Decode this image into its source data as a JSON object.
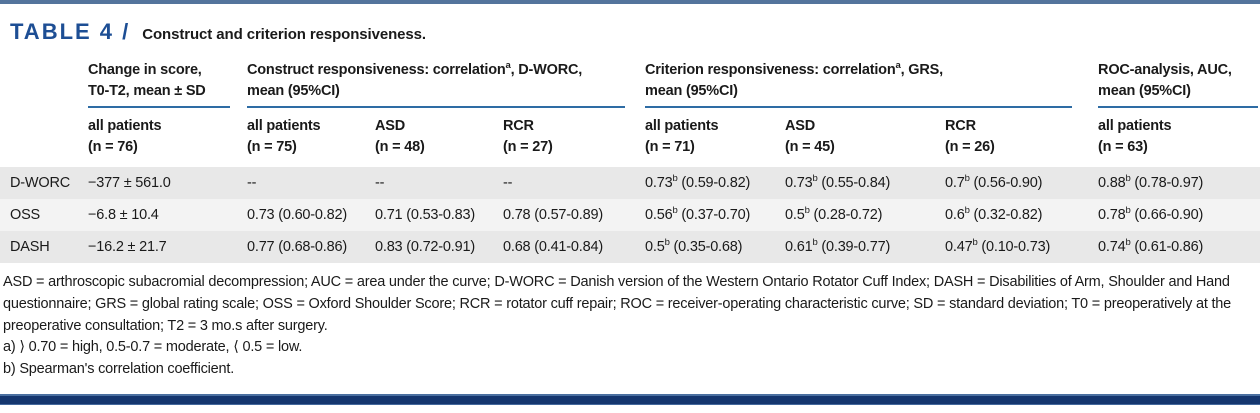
{
  "page": {
    "title_label": "TABLE 4 /",
    "title_text": "Construct and criterion responsiveness."
  },
  "colors": {
    "accent_blue": "#1d4e94",
    "rule_blue": "#2e6ca4",
    "top_rule": "#54749c",
    "bottom_rule_navy": "#15366e",
    "zebra_dark": "#e8e8e8",
    "zebra_light": "#f3f3f3"
  },
  "table": {
    "groups": [
      {
        "line1": "Change in score,",
        "line2": "T0-T2, mean ± SD",
        "span": 1
      },
      {
        "line1": "Construct responsiveness: correlation^a, D-WORC,",
        "line2": "mean (95%CI)",
        "span": 3
      },
      {
        "line1": "Criterion responsiveness: correlation^a, GRS,",
        "line2": "mean (95%CI)",
        "span": 3
      },
      {
        "line1": "ROC-analysis, AUC,",
        "line2": "mean (95%CI)",
        "span": 1
      }
    ],
    "subheaders": [
      {
        "line1": "all patients",
        "line2": "(n = 76)"
      },
      {
        "line1": "all patients",
        "line2": "(n = 75)"
      },
      {
        "line1": "ASD",
        "line2": "(n = 48)"
      },
      {
        "line1": "RCR",
        "line2": "(n = 27)"
      },
      {
        "line1": "all patients",
        "line2": "(n = 71)"
      },
      {
        "line1": "ASD",
        "line2": "(n = 45)"
      },
      {
        "line1": "RCR",
        "line2": "(n = 26)"
      },
      {
        "line1": "all patients",
        "line2": "(n = 63)"
      }
    ],
    "rows": [
      {
        "label": "D-WORC",
        "cells": [
          "−377 ± 561.0",
          "--",
          "--",
          "--",
          "0.73^b (0.59-0.82)",
          "0.73^b (0.55-0.84)",
          "0.7^b (0.56-0.90)",
          "0.88^b (0.78-0.97)"
        ]
      },
      {
        "label": "OSS",
        "cells": [
          "−6.8 ± 10.4",
          "0.73 (0.60-0.82)",
          "0.71 (0.53-0.83)",
          "0.78 (0.57-0.89)",
          "0.56^b (0.37-0.70)",
          "0.5^b (0.28-0.72)",
          "0.6^b (0.32-0.82)",
          "0.78^b (0.66-0.90)"
        ]
      },
      {
        "label": "DASH",
        "cells": [
          "−16.2 ± 21.7",
          "0.77 (0.68-0.86)",
          "0.83 (0.72-0.91)",
          "0.68 (0.41-0.84)",
          "0.5^b (0.35-0.68)",
          "0.61^b (0.39-0.77)",
          "0.47^b (0.10-0.73)",
          "0.74^b (0.61-0.86)"
        ]
      }
    ]
  },
  "footnotes": {
    "abbreviations": "ASD = arthroscopic subacromial decompression; AUC = area under the curve; D-WORC = Danish version of the Western Ontario Rotator Cuff Index; DASH = Disabilities of Arm, Shoulder and Hand questionnaire; GRS = global rating scale; OSS = Oxford Shoulder Score; RCR = rotator cuff repair; ROC = receiver-operating characteristic curve; SD = standard deviation; T0 = preoperatively at the preoperative consultation; T2 = 3 mo.s after surgery.",
    "note_a": "a) ⟩ 0.70 = high, 0.5-0.7 = moderate, ⟨ 0.5 = low.",
    "note_b": "b) Spearman's correlation coefficient."
  }
}
